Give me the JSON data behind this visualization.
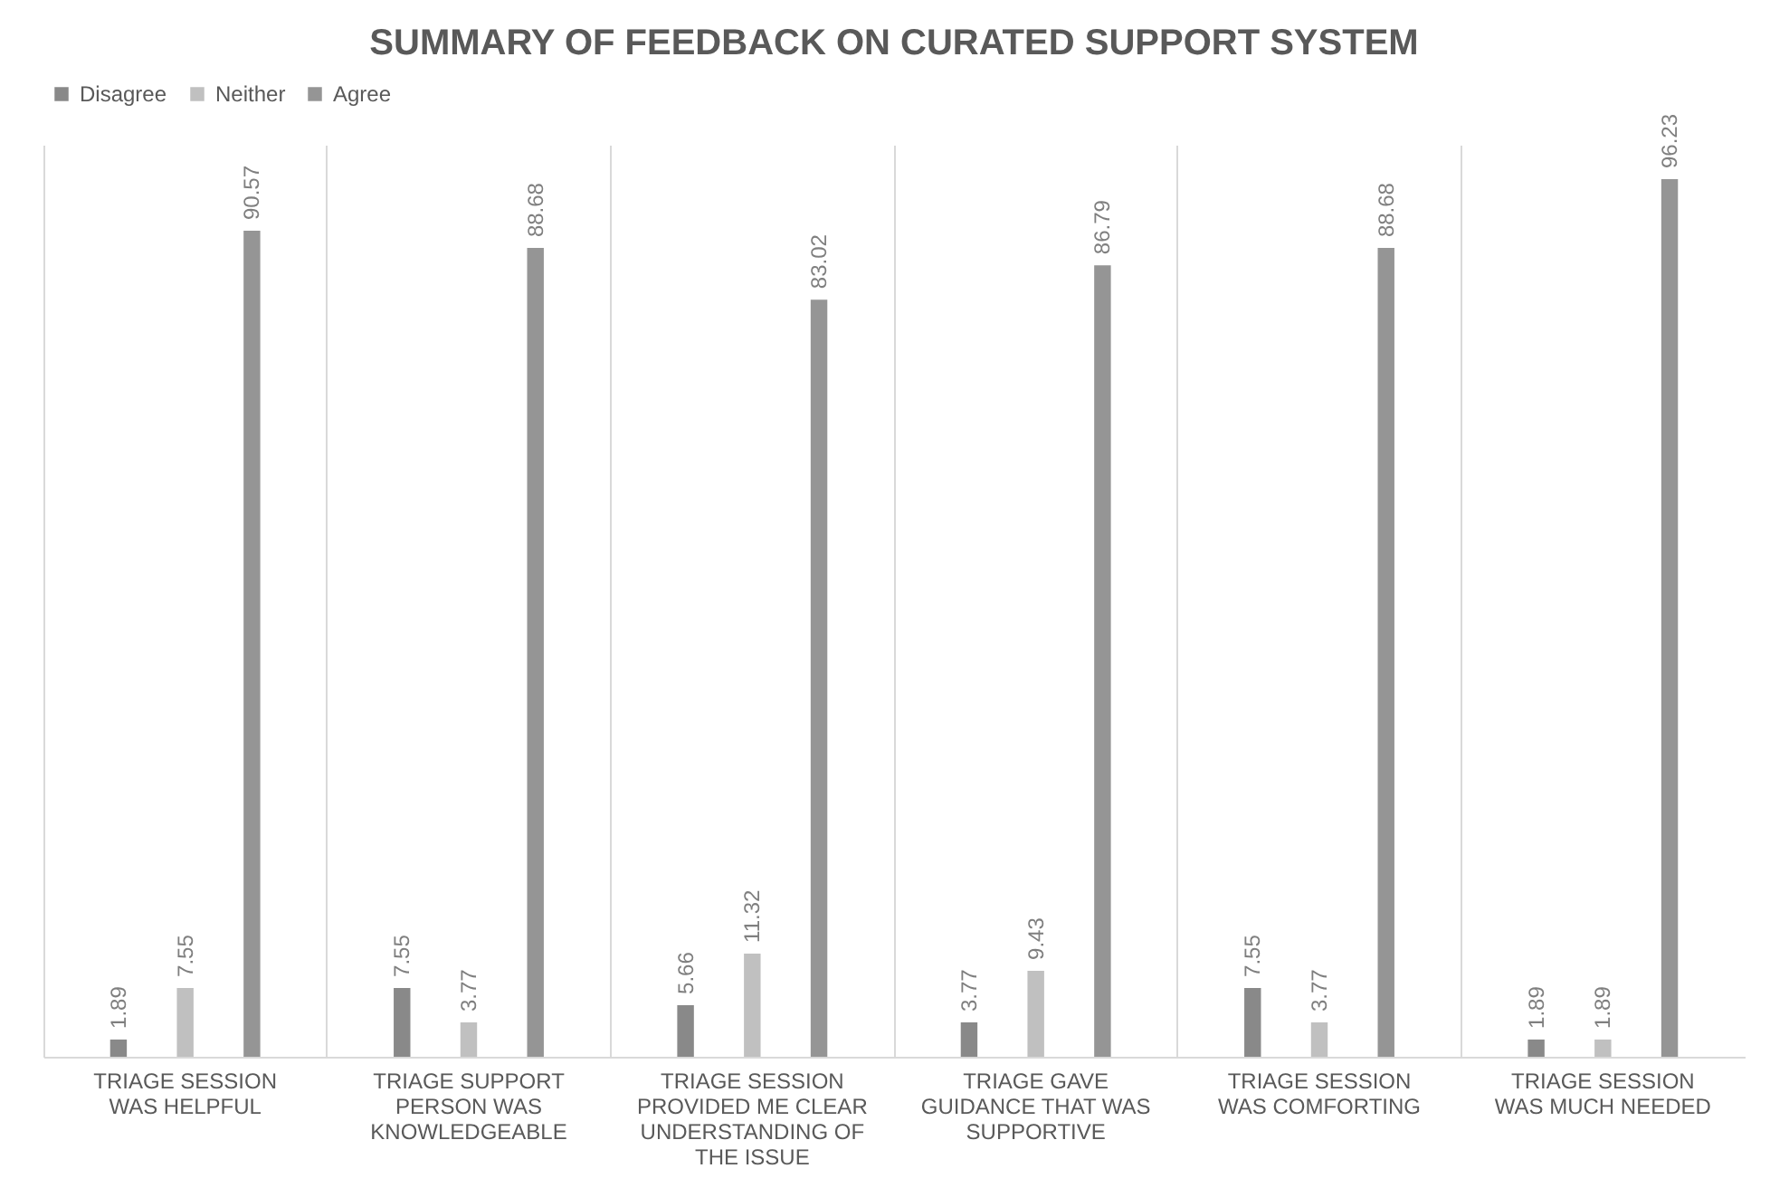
{
  "chart_data": {
    "type": "bar",
    "title": "SUMMARY OF FEEDBACK ON CURATED SUPPORT SYSTEM",
    "categories": [
      "TRIAGE SESSION WAS HELPFUL",
      "TRIAGE SUPPORT PERSON WAS KNOWLEDGEABLE",
      "TRIAGE SESSION PROVIDED ME CLEAR UNDERSTANDING OF THE ISSUE",
      "TRIAGE GAVE GUIDANCE THAT WAS SUPPORTIVE",
      "TRIAGE SESSION WAS COMFORTING",
      "TRIAGE SESSION WAS MUCH NEEDED"
    ],
    "series": [
      {
        "name": "Disagree",
        "color": "#898989",
        "values": [
          1.89,
          7.55,
          5.66,
          3.77,
          7.55,
          1.89
        ]
      },
      {
        "name": "Neither",
        "color": "#c0c0c0",
        "values": [
          7.55,
          3.77,
          11.32,
          9.43,
          3.77,
          1.89
        ]
      },
      {
        "name": "Agree",
        "color": "#959595",
        "values": [
          90.57,
          88.68,
          83.02,
          86.79,
          88.68,
          96.23
        ]
      }
    ],
    "data_labels": true,
    "legend": "top",
    "grid": "x"
  }
}
